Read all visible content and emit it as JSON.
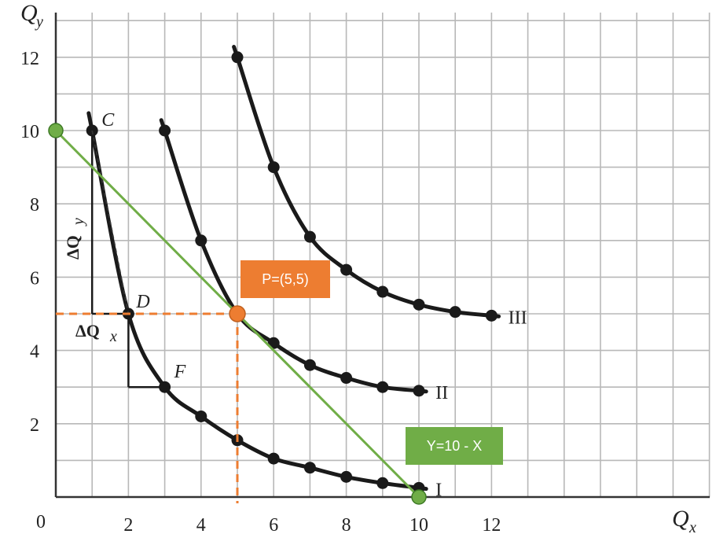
{
  "chart_data": {
    "type": "line",
    "xlabel": "Q",
    "xlabel_sub": "x",
    "ylabel": "Q",
    "ylabel_sub": "y",
    "origin_label": "0",
    "xlim": [
      0,
      18
    ],
    "ylim": [
      0,
      13
    ],
    "x_ticks": [
      2,
      4,
      6,
      8,
      10,
      12
    ],
    "y_ticks": [
      2,
      4,
      6,
      8,
      10,
      12
    ],
    "grid": true,
    "series": [
      {
        "name": "I",
        "x": [
          1,
          2,
          3,
          4,
          5,
          6,
          7,
          8,
          9,
          10
        ],
        "y": [
          10,
          5,
          3,
          2.2,
          1.55,
          1.05,
          0.8,
          0.55,
          0.38,
          0.25
        ]
      },
      {
        "name": "II",
        "x": [
          3,
          4,
          5,
          6,
          7,
          8,
          9,
          10
        ],
        "y": [
          10,
          7,
          5,
          4.2,
          3.6,
          3.25,
          3.0,
          2.9
        ]
      },
      {
        "name": "III",
        "x": [
          5,
          6,
          7,
          8,
          9,
          10,
          11,
          12
        ],
        "y": [
          12,
          9,
          7.1,
          6.2,
          5.6,
          5.25,
          5.05,
          4.95
        ]
      }
    ],
    "point_labels": [
      {
        "text": "C",
        "x": 1,
        "y": 10
      },
      {
        "text": "D",
        "x": 2,
        "y": 5
      },
      {
        "text": "F",
        "x": 3,
        "y": 3
      }
    ],
    "delta_labels": {
      "dy": "ΔQ",
      "dy_sub": "y",
      "dx": "ΔQ",
      "dx_sub": "x"
    },
    "budget_line": {
      "label": "Y=10 - X",
      "x": [
        0,
        10
      ],
      "y": [
        10,
        0
      ],
      "color": "#70ad47"
    },
    "highlight_point": {
      "label": "P=(5,5)",
      "x": 5,
      "y": 5,
      "color": "#ed7d31"
    }
  }
}
